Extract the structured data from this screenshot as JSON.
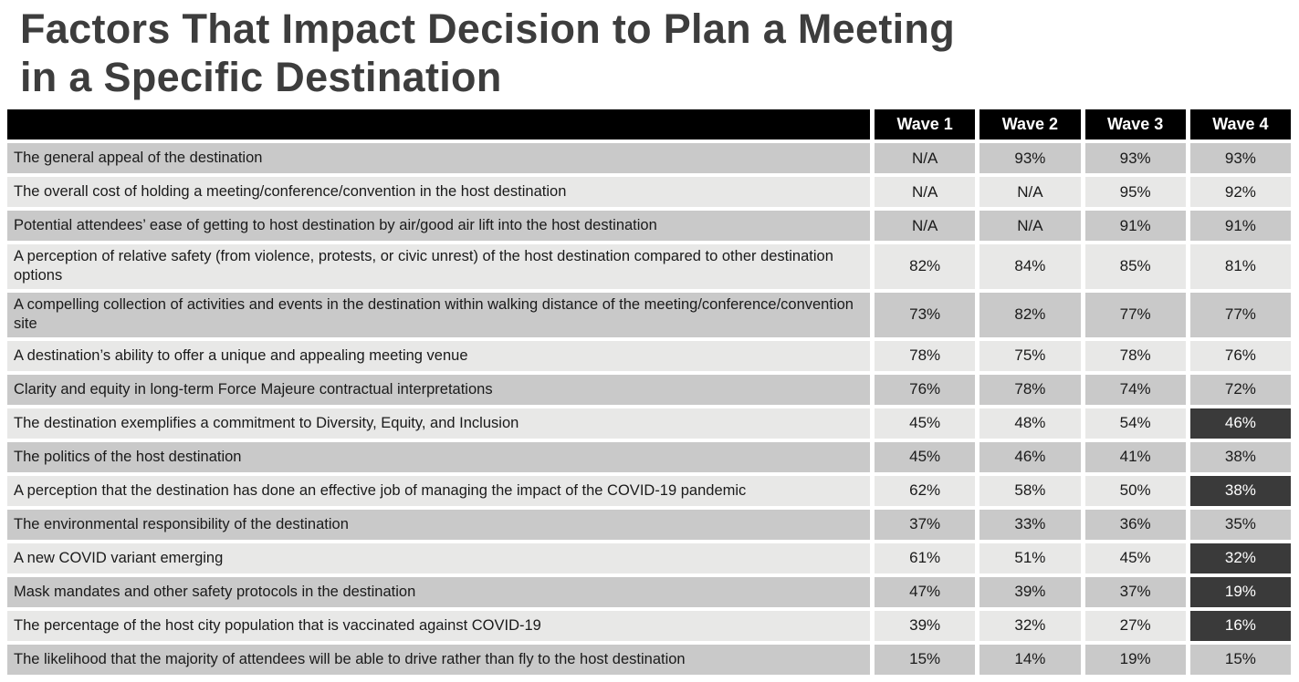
{
  "title": {
    "line1": "Factors That Impact Decision to Plan a Meeting",
    "line2": "in a Specific Destination"
  },
  "chart_data": {
    "type": "table",
    "columns": [
      "Wave 1",
      "Wave 2",
      "Wave 3",
      "Wave 4"
    ],
    "rows": [
      {
        "factor": "The general appeal of the destination",
        "values": [
          "N/A",
          "93%",
          "93%",
          "93%"
        ]
      },
      {
        "factor": "The overall cost of holding a meeting/conference/convention in the host destination",
        "values": [
          "N/A",
          "N/A",
          "95%",
          "92%"
        ]
      },
      {
        "factor": "Potential attendees’ ease of getting to host destination by air/good air lift into the host destination",
        "values": [
          "N/A",
          "N/A",
          "91%",
          "91%"
        ]
      },
      {
        "factor": "A perception of relative safety (from violence, protests, or civic unrest) of the host destination compared to other destination options",
        "values": [
          "82%",
          "84%",
          "85%",
          "81%"
        ]
      },
      {
        "factor": "A compelling collection of activities and events in the destination within walking distance of the meeting/conference/convention site",
        "values": [
          "73%",
          "82%",
          "77%",
          "77%"
        ]
      },
      {
        "factor": "A destination’s ability to offer a unique and appealing meeting venue",
        "values": [
          "78%",
          "75%",
          "78%",
          "76%"
        ]
      },
      {
        "factor": "Clarity and equity in long-term Force Majeure contractual interpretations",
        "values": [
          "76%",
          "78%",
          "74%",
          "72%"
        ]
      },
      {
        "factor": "The destination exemplifies a commitment to Diversity, Equity, and Inclusion",
        "values": [
          "45%",
          "48%",
          "54%",
          "46%"
        ],
        "dark_cells": [
          3
        ]
      },
      {
        "factor": "The politics of the host destination",
        "values": [
          "45%",
          "46%",
          "41%",
          "38%"
        ]
      },
      {
        "factor": "A perception that the destination has done an effective job of managing the impact of the COVID-19 pandemic",
        "values": [
          "62%",
          "58%",
          "50%",
          "38%"
        ],
        "dark_cells": [
          3
        ]
      },
      {
        "factor": "The environmental responsibility of the destination",
        "values": [
          "37%",
          "33%",
          "36%",
          "35%"
        ]
      },
      {
        "factor": "A new COVID variant emerging",
        "values": [
          "61%",
          "51%",
          "45%",
          "32%"
        ],
        "dark_cells": [
          3
        ]
      },
      {
        "factor": "Mask mandates and other safety protocols in the destination",
        "values": [
          "47%",
          "39%",
          "37%",
          "19%"
        ],
        "dark_cells": [
          3
        ]
      },
      {
        "factor": "The percentage of the host city population that is vaccinated against COVID-19",
        "values": [
          "39%",
          "32%",
          "27%",
          "16%"
        ],
        "dark_cells": [
          3
        ]
      },
      {
        "factor": "The likelihood that the majority of attendees will be able to drive rather than fly to the host destination",
        "values": [
          "15%",
          "14%",
          "19%",
          "15%"
        ]
      }
    ]
  },
  "colors": {
    "header_bg": "#000000",
    "header_text": "#ffffff",
    "row_shade_dark": "#c9c9c9",
    "row_shade_light": "#e8e8e7",
    "highlight_cell_bg": "#3a3a3a",
    "highlight_cell_text": "#ffffff",
    "title_color": "#3d3d3d",
    "body_text": "#1a1a1a"
  }
}
